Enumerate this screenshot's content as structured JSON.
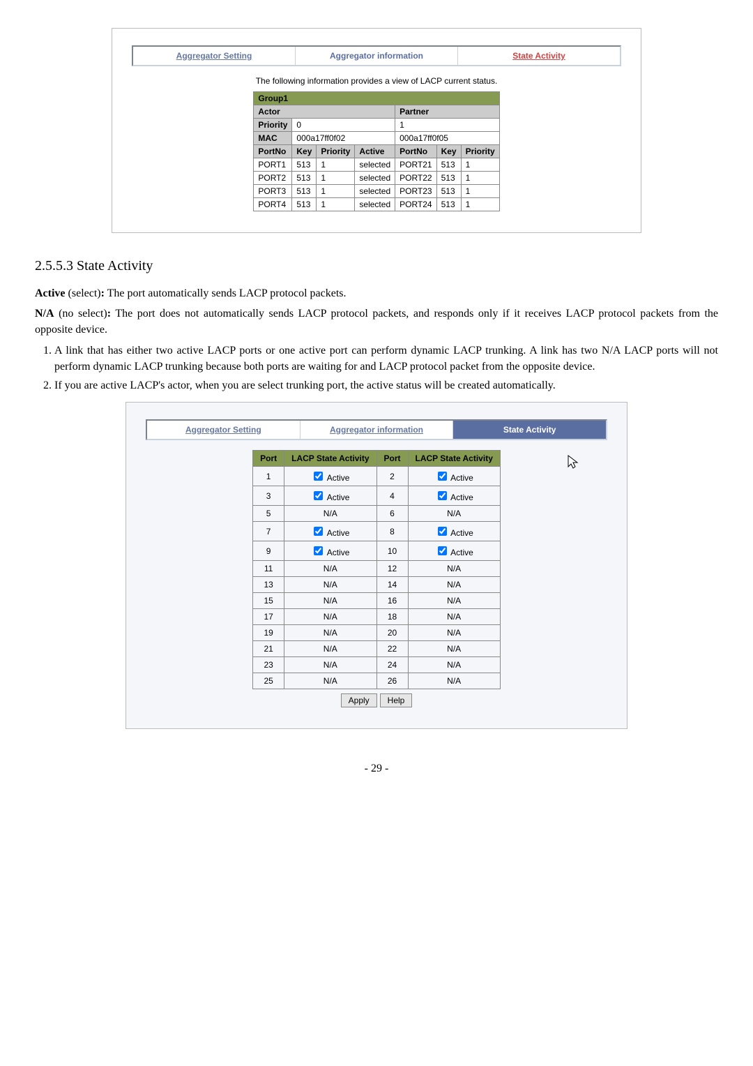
{
  "fig1": {
    "tabs": {
      "aggregator_setting": "Aggregator Setting",
      "aggregator_info": "Aggregator information",
      "state_activity": "State Activity"
    },
    "caption": "The following information provides a view of LACP current status.",
    "group_title": "Group1",
    "actor_label": "Actor",
    "partner_label": "Partner",
    "priority_label": "Priority",
    "priority_actor": "0",
    "priority_partner": "1",
    "mac_label": "MAC",
    "mac_actor": "000a17ff0f02",
    "mac_partner": "000a17ff0f05",
    "cols_actor": [
      "PortNo",
      "Key",
      "Priority",
      "Active"
    ],
    "cols_partner": [
      "PortNo",
      "Key",
      "Priority"
    ],
    "rows": [
      {
        "a_port": "PORT1",
        "a_key": "513",
        "a_pri": "1",
        "a_act": "selected",
        "p_port": "PORT21",
        "p_key": "513",
        "p_pri": "1"
      },
      {
        "a_port": "PORT2",
        "a_key": "513",
        "a_pri": "1",
        "a_act": "selected",
        "p_port": "PORT22",
        "p_key": "513",
        "p_pri": "1"
      },
      {
        "a_port": "PORT3",
        "a_key": "513",
        "a_pri": "1",
        "a_act": "selected",
        "p_port": "PORT23",
        "p_key": "513",
        "p_pri": "1"
      },
      {
        "a_port": "PORT4",
        "a_key": "513",
        "a_pri": "1",
        "a_act": "selected",
        "p_port": "PORT24",
        "p_key": "513",
        "p_pri": "1"
      }
    ]
  },
  "section_heading": "2.5.5.3 State Activity",
  "para1_prefix": "Active",
  "para1_mid": " (select)",
  "para1_rest": ": The port automatically sends LACP protocol packets.",
  "para2_prefix": "N/A",
  "para2_mid": " (no select)",
  "para2_rest": ": The port does not automatically sends LACP protocol packets, and responds only if it receives LACP protocol packets from the opposite device.",
  "li1_num": "1.",
  "li1": "A link that has either two active LACP ports or one active port can perform dynamic LACP trunking. A link has two N/A LACP ports will not perform dynamic LACP trunking because both ports are waiting for and LACP protocol packet from the opposite device.",
  "li2_num": "2.",
  "li2": "If you are active LACP's actor, when you are select trunking port, the active status will be created automatically.",
  "fig2": {
    "tabs": {
      "aggregator_setting": "Aggregator Setting",
      "aggregator_info": "Aggregator information",
      "state_activity": "State Activity"
    },
    "headers": [
      "Port",
      "LACP State Activity",
      "Port",
      "LACP State Activity"
    ],
    "active_label": "Active",
    "na_label": "N/A",
    "rows": [
      {
        "p1": "1",
        "s1": "cb",
        "p2": "2",
        "s2": "cb"
      },
      {
        "p1": "3",
        "s1": "cb",
        "p2": "4",
        "s2": "cb"
      },
      {
        "p1": "5",
        "s1": "na",
        "p2": "6",
        "s2": "na"
      },
      {
        "p1": "7",
        "s1": "cb",
        "p2": "8",
        "s2": "cb"
      },
      {
        "p1": "9",
        "s1": "cb",
        "p2": "10",
        "s2": "cb"
      },
      {
        "p1": "11",
        "s1": "na",
        "p2": "12",
        "s2": "na"
      },
      {
        "p1": "13",
        "s1": "na",
        "p2": "14",
        "s2": "na"
      },
      {
        "p1": "15",
        "s1": "na",
        "p2": "16",
        "s2": "na"
      },
      {
        "p1": "17",
        "s1": "na",
        "p2": "18",
        "s2": "na"
      },
      {
        "p1": "19",
        "s1": "na",
        "p2": "20",
        "s2": "na"
      },
      {
        "p1": "21",
        "s1": "na",
        "p2": "22",
        "s2": "na"
      },
      {
        "p1": "23",
        "s1": "na",
        "p2": "24",
        "s2": "na"
      },
      {
        "p1": "25",
        "s1": "na",
        "p2": "26",
        "s2": "na"
      }
    ],
    "apply": "Apply",
    "help": "Help"
  },
  "page_number": "- 29 -"
}
